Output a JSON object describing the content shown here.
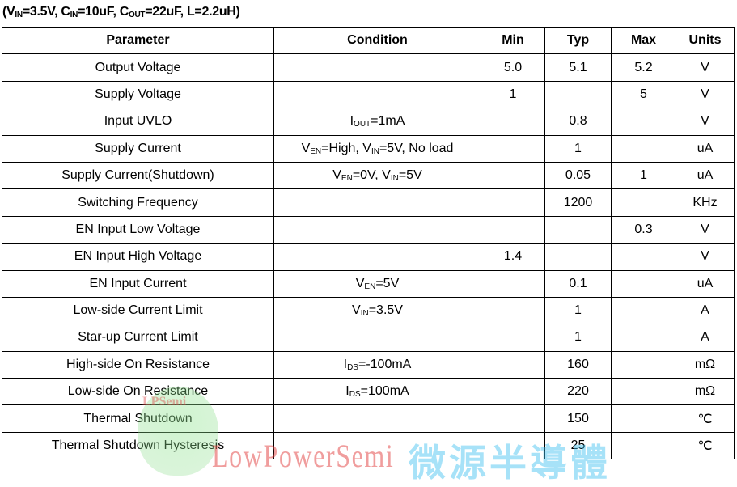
{
  "caption": [
    {
      "t": "(V"
    },
    {
      "t": "IN",
      "sub": true
    },
    {
      "t": "=3.5V, C"
    },
    {
      "t": "IN",
      "sub": true
    },
    {
      "t": "=10uF, C"
    },
    {
      "t": "OUT",
      "sub": true
    },
    {
      "t": "=22uF, L=2.2uH)"
    }
  ],
  "headers": [
    "Parameter",
    "Condition",
    "Min",
    "Typ",
    "Max",
    "Units"
  ],
  "rows": [
    {
      "param": "Output Voltage",
      "cond": [],
      "min": "5.0",
      "typ": "5.1",
      "max": "5.2",
      "units": "V"
    },
    {
      "param": "Supply Voltage",
      "cond": [],
      "min": "1",
      "typ": "",
      "max": "5",
      "units": "V"
    },
    {
      "param": "Input UVLO",
      "cond": [
        {
          "t": "I"
        },
        {
          "t": "OUT",
          "sub": true
        },
        {
          "t": "=1mA"
        }
      ],
      "min": "",
      "typ": "0.8",
      "max": "",
      "units": "V"
    },
    {
      "param": "Supply Current",
      "cond": [
        {
          "t": "V"
        },
        {
          "t": "EN",
          "sub": true
        },
        {
          "t": "=High, V"
        },
        {
          "t": "IN",
          "sub": true
        },
        {
          "t": "=5V, No load"
        }
      ],
      "min": "",
      "typ": "1",
      "max": "",
      "units": "uA"
    },
    {
      "param": "Supply Current(Shutdown)",
      "cond": [
        {
          "t": "V"
        },
        {
          "t": "EN",
          "sub": true
        },
        {
          "t": "=0V, V"
        },
        {
          "t": "IN",
          "sub": true
        },
        {
          "t": "=5V"
        }
      ],
      "min": "",
      "typ": "0.05",
      "max": "1",
      "units": "uA"
    },
    {
      "param": "Switching Frequency",
      "cond": [],
      "min": "",
      "typ": "1200",
      "max": "",
      "units": "KHz"
    },
    {
      "param": "EN Input Low Voltage",
      "cond": [],
      "min": "",
      "typ": "",
      "max": "0.3",
      "units": "V"
    },
    {
      "param": "EN Input High Voltage",
      "cond": [],
      "min": "1.4",
      "typ": "",
      "max": "",
      "units": "V"
    },
    {
      "param": "EN Input Current",
      "cond": [
        {
          "t": "V"
        },
        {
          "t": "EN",
          "sub": true
        },
        {
          "t": "=5V"
        }
      ],
      "min": "",
      "typ": "0.1",
      "max": "",
      "units": "uA"
    },
    {
      "param": "Low-side Current Limit",
      "cond": [
        {
          "t": "V"
        },
        {
          "t": "IN",
          "sub": true
        },
        {
          "t": "=3.5V"
        }
      ],
      "min": "",
      "typ": "1",
      "max": "",
      "units": "A"
    },
    {
      "param": "Star-up Current Limit",
      "cond": [],
      "min": "",
      "typ": "1",
      "max": "",
      "units": "A"
    },
    {
      "param": "High-side On Resistance",
      "cond": [
        {
          "t": "I"
        },
        {
          "t": "DS",
          "sub": true
        },
        {
          "t": "=-100mA"
        }
      ],
      "min": "",
      "typ": "160",
      "max": "",
      "units": "mΩ"
    },
    {
      "param": "Low-side On Resistance",
      "cond": [
        {
          "t": "I"
        },
        {
          "t": "DS",
          "sub": true
        },
        {
          "t": "=100mA"
        }
      ],
      "min": "",
      "typ": "220",
      "max": "",
      "units": "mΩ"
    },
    {
      "param": "Thermal Shutdown",
      "cond": [],
      "min": "",
      "typ": "150",
      "max": "",
      "units": "℃"
    },
    {
      "param": "Thermal Shutdown Hysteresis",
      "cond": [],
      "min": "",
      "typ": "25",
      "max": "",
      "units": "℃"
    }
  ],
  "watermark": {
    "small": "LPSemi",
    "latin": "LowPowerSemi",
    "cjk": "微源半導體"
  }
}
